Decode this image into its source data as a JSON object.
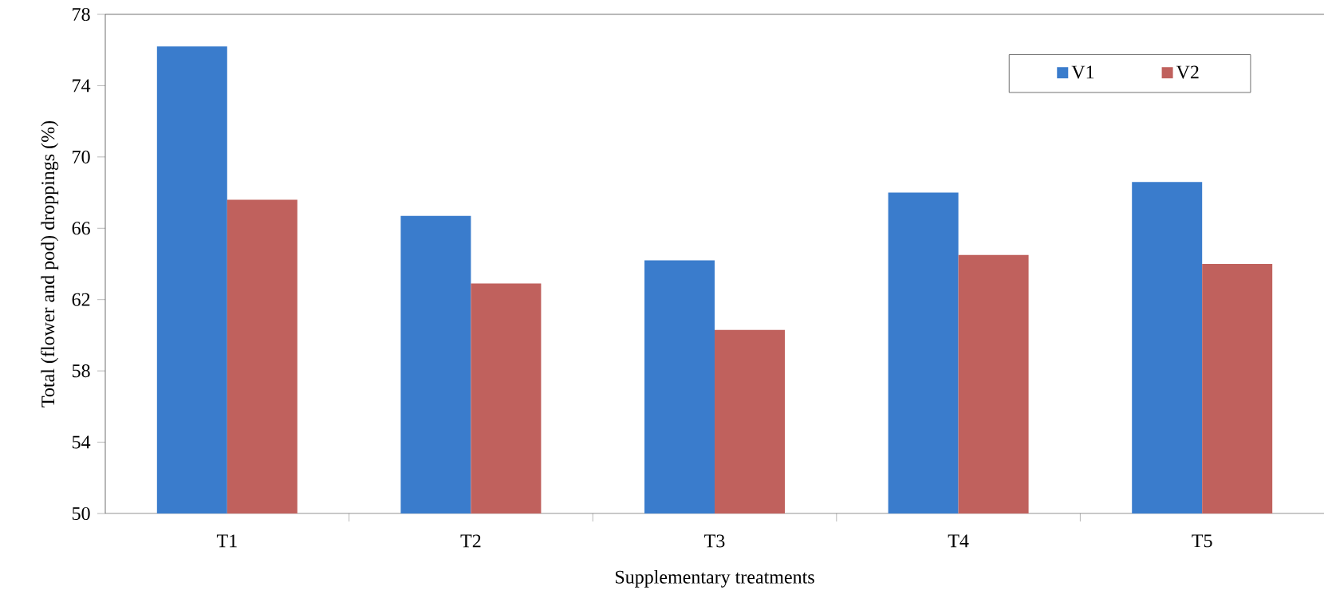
{
  "chart_data": {
    "type": "bar",
    "xlabel": "Supplementary treatments",
    "ylabel": "Total (flower and pod) droppings (%)",
    "categories": [
      "T1",
      "T2",
      "T3",
      "T4",
      "T5"
    ],
    "series": [
      {
        "name": "V1",
        "color": "#3a7ccc",
        "values": [
          76.2,
          66.7,
          64.2,
          68.0,
          68.6
        ]
      },
      {
        "name": "V2",
        "color": "#c0615d",
        "values": [
          67.6,
          62.9,
          60.3,
          64.5,
          64.0
        ]
      }
    ],
    "ylim": [
      50,
      78
    ],
    "yticks": [
      50,
      54,
      58,
      62,
      66,
      70,
      74,
      78
    ],
    "legend": "top right"
  }
}
